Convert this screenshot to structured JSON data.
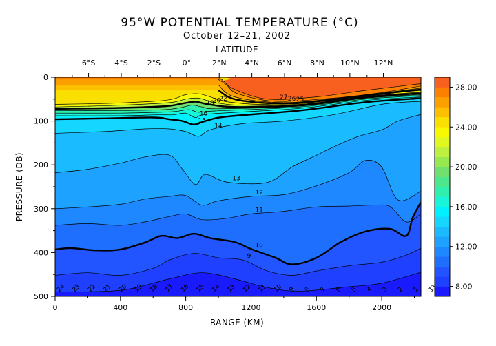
{
  "chart_data": {
    "type": "heatmap",
    "title": "95°W POTENTIAL TEMPERATURE (°C)",
    "subtitle": "October 12–21, 2002",
    "top_axis_label": "LATITUDE",
    "top_ticks": [
      "6°S",
      "4°S",
      "2°S",
      "0°",
      "2°N",
      "4°N",
      "6°N",
      "8°N",
      "10°N",
      "12°N"
    ],
    "top_tick_positions_km": [
      205,
      405,
      605,
      805,
      1005,
      1205,
      1405,
      1605,
      1805,
      2010
    ],
    "xlabel": "RANGE (KM)",
    "ylabel": "PRESSURE (DB)",
    "xlim": [
      0,
      2240
    ],
    "ylim": [
      0,
      500
    ],
    "x_ticks": [
      0,
      400,
      800,
      1200,
      1600,
      2000
    ],
    "y_ticks": [
      0,
      100,
      200,
      300,
      400,
      500
    ],
    "x_tick_labels": [
      "0",
      "400",
      "800",
      "1200",
      "1600",
      "2000"
    ],
    "y_tick_labels": [
      "0",
      "100",
      "200",
      "300",
      "400",
      "500"
    ],
    "colorbar": {
      "range": [
        7,
        29
      ],
      "step": 1,
      "ticks": [
        8,
        12,
        16,
        20,
        24,
        28
      ],
      "tick_labels": [
        "8.00",
        "12.00",
        "16.00",
        "20.00",
        "24.00",
        "28.00"
      ],
      "palette": [
        "#1a1aff",
        "#1f40ff",
        "#2255ff",
        "#1f6fff",
        "#1d88ff",
        "#1ea2ff",
        "#1bbcff",
        "#15d6ff",
        "#00f0ff",
        "#18f5d8",
        "#30f0b0",
        "#4ee88c",
        "#70e070",
        "#98e850",
        "#bef040",
        "#e0f820",
        "#f8f800",
        "#fae000",
        "#fcc000",
        "#fca000",
        "#fc8000",
        "#f86020"
      ]
    },
    "contours": [
      {
        "value": 28,
        "label": "",
        "points": [
          [
            1000,
            0
          ],
          [
            1020,
            5
          ],
          [
            1040,
            12
          ],
          [
            1100,
            28
          ],
          [
            1300,
            50
          ],
          [
            1600,
            45
          ],
          [
            1900,
            30
          ],
          [
            2240,
            15
          ]
        ]
      },
      {
        "value": 27,
        "label": "27",
        "points": [
          [
            1000,
            5
          ],
          [
            1050,
            18
          ],
          [
            1120,
            38
          ],
          [
            1350,
            55
          ],
          [
            1700,
            48
          ],
          [
            2000,
            35
          ],
          [
            2240,
            20
          ]
        ]
      },
      {
        "value": 26,
        "label": "26",
        "points": [
          [
            1000,
            18
          ],
          [
            1100,
            45
          ],
          [
            1400,
            58
          ],
          [
            1800,
            45
          ],
          [
            2240,
            25
          ]
        ]
      },
      {
        "value": 25,
        "label": "25",
        "points": [
          [
            1000,
            30
          ],
          [
            1120,
            52
          ],
          [
            1450,
            60
          ],
          [
            1900,
            42
          ],
          [
            2240,
            28
          ]
        ]
      },
      {
        "value": 24,
        "label": "",
        "points": [
          [
            0,
            62
          ],
          [
            300,
            60
          ],
          [
            600,
            55
          ],
          [
            720,
            50
          ],
          [
            800,
            40
          ],
          [
            880,
            38
          ],
          [
            950,
            45
          ],
          [
            1050,
            56
          ],
          [
            1300,
            62
          ],
          [
            1700,
            50
          ],
          [
            2000,
            38
          ],
          [
            2240,
            30
          ]
        ]
      },
      {
        "value": 22,
        "label": "22",
        "points": [
          [
            0,
            68
          ],
          [
            400,
            64
          ],
          [
            700,
            58
          ],
          [
            800,
            50
          ],
          [
            880,
            48
          ],
          [
            980,
            58
          ],
          [
            1150,
            64
          ],
          [
            1500,
            62
          ],
          [
            1900,
            44
          ],
          [
            2240,
            34
          ]
        ]
      },
      {
        "value": 20,
        "label": "20",
        "points": [
          [
            0,
            72
          ],
          [
            400,
            70
          ],
          [
            680,
            66
          ],
          [
            780,
            60
          ],
          [
            860,
            56
          ],
          [
            940,
            62
          ],
          [
            1100,
            68
          ],
          [
            1500,
            64
          ],
          [
            1900,
            46
          ],
          [
            2240,
            37
          ]
        ]
      },
      {
        "value": 18,
        "label": "18",
        "points": [
          [
            0,
            76
          ],
          [
            400,
            76
          ],
          [
            660,
            74
          ],
          [
            760,
            70
          ],
          [
            840,
            64
          ],
          [
            900,
            68
          ],
          [
            1000,
            72
          ],
          [
            1500,
            66
          ],
          [
            1900,
            48
          ],
          [
            2240,
            40
          ]
        ]
      },
      {
        "value": 17,
        "label": "",
        "points": [
          [
            0,
            82
          ],
          [
            400,
            82
          ],
          [
            640,
            80
          ],
          [
            740,
            78
          ],
          [
            820,
            74
          ],
          [
            880,
            80
          ],
          [
            980,
            77
          ],
          [
            1500,
            68
          ],
          [
            1900,
            50
          ],
          [
            2240,
            42
          ]
        ]
      },
      {
        "value": 16,
        "label": "16",
        "points": [
          [
            0,
            88
          ],
          [
            400,
            88
          ],
          [
            620,
            86
          ],
          [
            720,
            86
          ],
          [
            800,
            82
          ],
          [
            860,
            92
          ],
          [
            950,
            84
          ],
          [
            1500,
            71
          ],
          [
            1900,
            53
          ],
          [
            2240,
            45
          ]
        ]
      },
      {
        "value": 15,
        "label": "15",
        "points": [
          [
            0,
            96
          ],
          [
            300,
            94
          ],
          [
            600,
            92
          ],
          [
            700,
            96
          ],
          [
            780,
            100
          ],
          [
            850,
            108
          ],
          [
            920,
            100
          ],
          [
            1050,
            90
          ],
          [
            1500,
            76
          ],
          [
            1900,
            57
          ],
          [
            2240,
            48
          ]
        ]
      },
      {
        "value": 14,
        "label": "14",
        "points": [
          [
            0,
            128
          ],
          [
            300,
            124
          ],
          [
            550,
            118
          ],
          [
            700,
            118
          ],
          [
            800,
            124
          ],
          [
            880,
            135
          ],
          [
            950,
            120
          ],
          [
            1150,
            106
          ],
          [
            1400,
            100
          ],
          [
            1700,
            86
          ],
          [
            2000,
            62
          ],
          [
            2240,
            55
          ]
        ]
      },
      {
        "value": 13,
        "label": "13",
        "points": [
          [
            0,
            218
          ],
          [
            200,
            210
          ],
          [
            400,
            196
          ],
          [
            550,
            182
          ],
          [
            700,
            178
          ],
          [
            780,
            210
          ],
          [
            860,
            245
          ],
          [
            920,
            222
          ],
          [
            1060,
            240
          ],
          [
            1300,
            240
          ],
          [
            1450,
            205
          ],
          [
            1600,
            178
          ],
          [
            1700,
            160
          ],
          [
            1850,
            136
          ],
          [
            2000,
            120
          ],
          [
            2100,
            100
          ],
          [
            2240,
            85
          ]
        ]
      },
      {
        "value": 12,
        "label": "12",
        "points": [
          [
            0,
            300
          ],
          [
            200,
            296
          ],
          [
            400,
            290
          ],
          [
            550,
            278
          ],
          [
            700,
            272
          ],
          [
            800,
            270
          ],
          [
            900,
            292
          ],
          [
            1000,
            282
          ],
          [
            1200,
            272
          ],
          [
            1400,
            268
          ],
          [
            1600,
            248
          ],
          [
            1800,
            218
          ],
          [
            1900,
            190
          ],
          [
            2000,
            205
          ],
          [
            2100,
            280
          ],
          [
            2240,
            260
          ]
        ]
      },
      {
        "value": 11,
        "label": "11",
        "points": [
          [
            0,
            338
          ],
          [
            200,
            334
          ],
          [
            400,
            338
          ],
          [
            550,
            330
          ],
          [
            700,
            318
          ],
          [
            800,
            312
          ],
          [
            900,
            325
          ],
          [
            1050,
            322
          ],
          [
            1200,
            312
          ],
          [
            1400,
            306
          ],
          [
            1600,
            296
          ],
          [
            1800,
            294
          ],
          [
            1950,
            292
          ],
          [
            2050,
            295
          ],
          [
            2150,
            330
          ],
          [
            2240,
            312
          ]
        ]
      },
      {
        "value": 10,
        "label": "10",
        "points": [
          [
            0,
            393
          ],
          [
            100,
            390
          ],
          [
            250,
            395
          ],
          [
            400,
            393
          ],
          [
            550,
            377
          ],
          [
            650,
            362
          ],
          [
            750,
            367
          ],
          [
            850,
            357
          ],
          [
            950,
            367
          ],
          [
            1100,
            376
          ],
          [
            1200,
            392
          ],
          [
            1350,
            412
          ],
          [
            1450,
            427
          ],
          [
            1600,
            412
          ],
          [
            1750,
            376
          ],
          [
            1900,
            352
          ],
          [
            2050,
            346
          ],
          [
            2150,
            362
          ],
          [
            2190,
            320
          ],
          [
            2240,
            285
          ]
        ]
      },
      {
        "value": 9,
        "label": "9",
        "points": [
          [
            0,
            452
          ],
          [
            200,
            446
          ],
          [
            400,
            452
          ],
          [
            600,
            436
          ],
          [
            700,
            417
          ],
          [
            850,
            402
          ],
          [
            1000,
            412
          ],
          [
            1150,
            417
          ],
          [
            1300,
            442
          ],
          [
            1450,
            452
          ],
          [
            1600,
            442
          ],
          [
            1800,
            430
          ],
          [
            2000,
            422
          ],
          [
            2150,
            406
          ],
          [
            2240,
            390
          ]
        ]
      },
      {
        "value": 8,
        "label": "",
        "points": [
          [
            0,
            490
          ],
          [
            400,
            486
          ],
          [
            700,
            460
          ],
          [
            900,
            446
          ],
          [
            1100,
            460
          ],
          [
            1300,
            480
          ],
          [
            1500,
            488
          ],
          [
            1800,
            478
          ],
          [
            2000,
            470
          ],
          [
            2240,
            445
          ]
        ]
      }
    ],
    "bottom_contour_labels": [
      "24",
      "23",
      "22",
      "21",
      "20",
      "19",
      "18",
      "17",
      "16",
      "15",
      "14",
      "13",
      "12",
      "11",
      "10",
      "9",
      "8",
      "7",
      "6",
      "5",
      "4",
      "3",
      "2",
      "1",
      "11"
    ]
  }
}
